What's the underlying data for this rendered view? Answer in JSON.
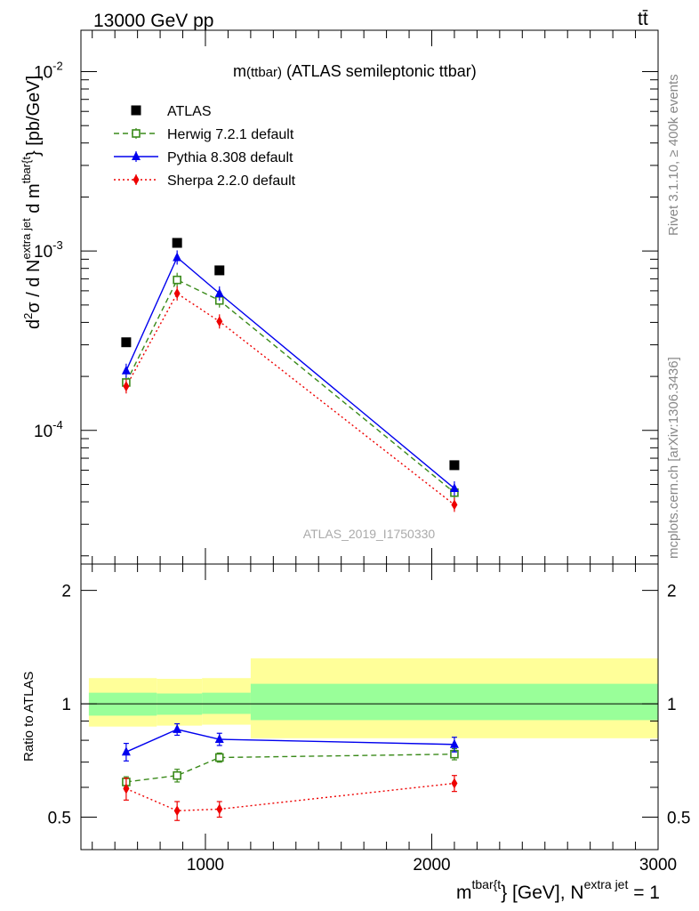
{
  "header": {
    "energy_label": "13000 GeV pp",
    "process_label": "tt̄"
  },
  "side_labels": {
    "rivet": "Rivet 3.1.10, ≥ 400k events",
    "mcplots": "mcplots.cern.ch [arXiv:1306.3436]"
  },
  "chart_data": [
    {
      "type": "line",
      "panel": "main",
      "title_main": "m",
      "title_paren": "(ttbar)",
      "title_rest": " (ATLAS semileptonic ttbar)",
      "watermark": "ATLAS_2019_I1750330",
      "ylabel": {
        "d2": "d",
        "exp2": "2",
        "sigma": "σ  /  d N",
        "n_sup": "extra jet",
        "dm": " d m",
        "m_sup": "tbar{t",
        "unit": "} [pb/GeV]"
      },
      "yscale": "log",
      "ylim": [
        1.8e-05,
        0.017
      ],
      "xlim": [
        450,
        3000
      ],
      "ytick_labels": [
        {
          "base": "10",
          "exp": "-2",
          "value": 0.01
        },
        {
          "base": "10",
          "exp": "-3",
          "value": 0.001
        },
        {
          "base": "10",
          "exp": "-4",
          "value": 0.0001
        }
      ],
      "series": [
        {
          "name": "ATLAS",
          "marker": "square",
          "line": "none",
          "color": "#000000",
          "x": [
            650,
            875,
            1062,
            2100
          ],
          "values": [
            0.00031,
            0.00111,
            0.00078,
            6.4e-05
          ]
        },
        {
          "name": "Herwig 7.2.1 default",
          "marker": "open-square",
          "line": "dashed",
          "color": "#3a8a1a",
          "x": [
            650,
            875,
            1062,
            2100
          ],
          "values": [
            0.000185,
            0.00069,
            0.00053,
            4.5e-05
          ]
        },
        {
          "name": "Pythia 8.308 default",
          "marker": "triangle",
          "line": "solid",
          "color": "#0000ee",
          "x": [
            650,
            875,
            1062,
            2100
          ],
          "values": [
            0.000215,
            0.00092,
            0.00058,
            4.75e-05
          ]
        },
        {
          "name": "Sherpa 2.2.0 default",
          "marker": "diamond",
          "line": "dotted",
          "color": "#ee0000",
          "x": [
            650,
            875,
            1062,
            2100
          ],
          "values": [
            0.000176,
            0.00058,
            0.000405,
            3.85e-05
          ]
        }
      ]
    },
    {
      "type": "line",
      "panel": "ratio",
      "ylabel": "Ratio to ATLAS",
      "ylim": [
        0.41,
        2.35
      ],
      "xlim": [
        450,
        3000
      ],
      "ytick_labels": [
        "2",
        "1",
        "0.5"
      ],
      "xtick_labels": [
        "1000",
        "2000",
        "3000"
      ],
      "xlabel": {
        "m": "m",
        "m_sup": "tbar{t",
        "rest": "} [GeV], N",
        "n_sup": "extra jet",
        "eq": " = 1"
      },
      "bands": [
        {
          "x0": 485,
          "x1": 785,
          "yellow": [
            0.87,
            1.17
          ],
          "green": [
            0.93,
            1.07
          ]
        },
        {
          "x0": 785,
          "x1": 985,
          "yellow": [
            0.875,
            1.165
          ],
          "green": [
            0.935,
            1.065
          ]
        },
        {
          "x0": 985,
          "x1": 1200,
          "yellow": [
            0.88,
            1.17
          ],
          "green": [
            0.94,
            1.07
          ]
        },
        {
          "x0": 1200,
          "x1": 3000,
          "yellow": [
            0.81,
            1.32
          ],
          "green": [
            0.905,
            1.13
          ]
        }
      ],
      "series": [
        {
          "name": "Herwig 7.2.1 default",
          "marker": "open-square",
          "line": "dashed",
          "color": "#3a8a1a",
          "x": [
            650,
            875,
            1062,
            2100
          ],
          "values": [
            0.62,
            0.645,
            0.72,
            0.735
          ],
          "errors": [
            0.02,
            0.025,
            0.02,
            0.025
          ]
        },
        {
          "name": "Pythia 8.308 default",
          "marker": "triangle",
          "line": "solid",
          "color": "#0000ee",
          "x": [
            650,
            875,
            1062,
            2100
          ],
          "values": [
            0.745,
            0.855,
            0.805,
            0.78
          ],
          "errors": [
            0.04,
            0.03,
            0.03,
            0.035
          ]
        },
        {
          "name": "Sherpa 2.2.0 default",
          "marker": "diamond",
          "line": "dotted",
          "color": "#ee0000",
          "x": [
            650,
            875,
            1062,
            2100
          ],
          "values": [
            0.595,
            0.52,
            0.525,
            0.615
          ],
          "errors": [
            0.04,
            0.03,
            0.025,
            0.03
          ]
        }
      ]
    }
  ]
}
